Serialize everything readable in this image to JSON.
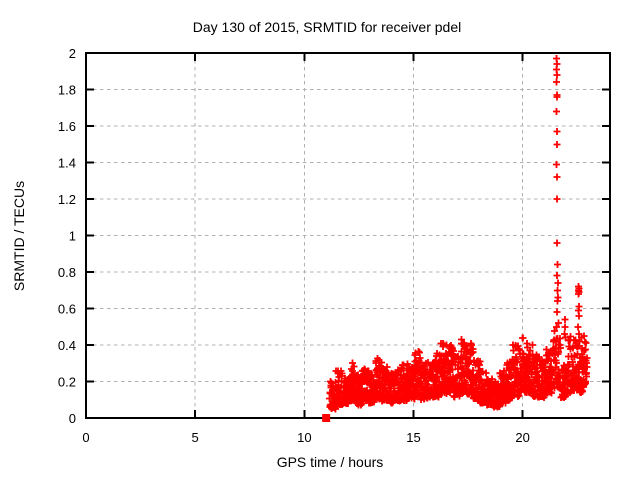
{
  "window": {
    "background": "#ffffff"
  },
  "chart_data": {
    "type": "scatter",
    "title": "Day 130 of 2015, SRMTID for receiver pdel",
    "xlabel": "GPS time / hours",
    "ylabel": "SRMTID / TECUs",
    "xlim": [
      0,
      24
    ],
    "ylim": [
      0,
      2
    ],
    "xticks": [
      [
        0,
        "0"
      ],
      [
        5,
        "5"
      ],
      [
        10,
        "10"
      ],
      [
        15,
        "15"
      ],
      [
        20,
        "20"
      ]
    ],
    "yticks": [
      [
        0,
        "0"
      ],
      [
        0.2,
        "0.2"
      ],
      [
        0.4,
        "0.4"
      ],
      [
        0.6,
        "0.6"
      ],
      [
        0.8,
        "0.8"
      ],
      [
        1,
        "1"
      ],
      [
        1.2,
        "1.2"
      ],
      [
        1.4,
        "1.4"
      ],
      [
        1.6,
        "1.6"
      ],
      [
        1.8,
        "1.8"
      ],
      [
        2,
        "2"
      ]
    ],
    "grid": {
      "visible": true,
      "style": "dashed",
      "color": "#b0b0b0"
    },
    "frame_color": "#000000",
    "marker": {
      "shape": "plus",
      "color": "#ff0000",
      "size": 7
    },
    "legend": "none",
    "series": {
      "name": "SRMTID",
      "zero_marker": {
        "x": 11.0,
        "y": 0,
        "shape": "filled-square",
        "size": 8
      },
      "band_segments": [
        [
          11.15,
          11.45,
          38,
          0.04,
          0.2
        ],
        [
          11.45,
          11.75,
          42,
          0.06,
          0.26
        ],
        [
          11.75,
          12.05,
          42,
          0.07,
          0.24
        ],
        [
          12.05,
          12.35,
          46,
          0.08,
          0.31
        ],
        [
          12.35,
          12.65,
          42,
          0.06,
          0.24
        ],
        [
          12.65,
          12.95,
          42,
          0.08,
          0.28
        ],
        [
          12.95,
          13.25,
          42,
          0.07,
          0.25
        ],
        [
          13.25,
          13.55,
          46,
          0.09,
          0.33
        ],
        [
          13.55,
          13.85,
          42,
          0.08,
          0.28
        ],
        [
          13.85,
          14.15,
          42,
          0.07,
          0.25
        ],
        [
          14.15,
          14.45,
          42,
          0.08,
          0.27
        ],
        [
          14.45,
          14.75,
          42,
          0.08,
          0.3
        ],
        [
          14.75,
          15.05,
          44,
          0.09,
          0.33
        ],
        [
          15.05,
          15.35,
          46,
          0.1,
          0.38
        ],
        [
          15.35,
          15.65,
          42,
          0.09,
          0.3
        ],
        [
          15.65,
          15.95,
          42,
          0.1,
          0.33
        ],
        [
          15.95,
          16.25,
          44,
          0.1,
          0.36
        ],
        [
          16.25,
          16.55,
          46,
          0.11,
          0.41
        ],
        [
          16.55,
          16.85,
          46,
          0.12,
          0.42
        ],
        [
          16.85,
          17.15,
          42,
          0.1,
          0.35
        ],
        [
          17.15,
          17.45,
          46,
          0.12,
          0.44
        ],
        [
          17.45,
          17.75,
          46,
          0.11,
          0.42
        ],
        [
          17.75,
          18.05,
          42,
          0.09,
          0.32
        ],
        [
          18.05,
          18.35,
          42,
          0.07,
          0.26
        ],
        [
          18.35,
          18.65,
          42,
          0.06,
          0.22
        ],
        [
          18.65,
          18.95,
          42,
          0.05,
          0.2
        ],
        [
          18.95,
          19.25,
          42,
          0.07,
          0.27
        ],
        [
          19.25,
          19.55,
          42,
          0.08,
          0.32
        ],
        [
          19.55,
          19.85,
          46,
          0.1,
          0.4
        ],
        [
          19.85,
          20.15,
          48,
          0.12,
          0.46
        ],
        [
          20.15,
          20.45,
          46,
          0.12,
          0.42
        ],
        [
          20.45,
          20.75,
          42,
          0.1,
          0.35
        ],
        [
          20.75,
          21.05,
          42,
          0.1,
          0.32
        ],
        [
          21.05,
          21.35,
          42,
          0.12,
          0.38
        ],
        [
          21.35,
          21.75,
          52,
          0.14,
          0.48
        ],
        [
          21.75,
          22.05,
          42,
          0.1,
          0.3
        ],
        [
          22.05,
          22.45,
          48,
          0.12,
          0.45
        ],
        [
          22.45,
          22.75,
          42,
          0.12,
          0.42
        ],
        [
          22.75,
          22.95,
          28,
          0.15,
          0.45
        ]
      ],
      "spike_points": [
        [
          21.56,
          1.97
        ],
        [
          21.57,
          1.94
        ],
        [
          21.56,
          1.91
        ],
        [
          21.58,
          1.88
        ],
        [
          21.56,
          1.84
        ],
        [
          21.57,
          1.77
        ],
        [
          21.58,
          1.76
        ],
        [
          21.56,
          1.68
        ],
        [
          21.57,
          1.57
        ],
        [
          21.58,
          1.5
        ],
        [
          21.56,
          1.39
        ],
        [
          21.57,
          1.32
        ],
        [
          21.58,
          1.2
        ],
        [
          21.57,
          0.96
        ],
        [
          21.6,
          0.84
        ],
        [
          21.58,
          0.78
        ],
        [
          21.61,
          0.74
        ],
        [
          21.59,
          0.7
        ],
        [
          21.62,
          0.66
        ],
        [
          21.6,
          0.64
        ],
        [
          21.57,
          0.58
        ],
        [
          21.63,
          0.52
        ],
        [
          21.55,
          0.5
        ],
        [
          21.93,
          0.54
        ],
        [
          21.95,
          0.5
        ],
        [
          21.92,
          0.46
        ],
        [
          21.96,
          0.44
        ],
        [
          22.55,
          0.72
        ],
        [
          22.57,
          0.71
        ],
        [
          22.56,
          0.7
        ],
        [
          22.58,
          0.69
        ],
        [
          22.55,
          0.68
        ],
        [
          22.57,
          0.61
        ],
        [
          22.56,
          0.59
        ],
        [
          22.58,
          0.56
        ],
        [
          22.54,
          0.5
        ],
        [
          22.57,
          0.46
        ],
        [
          22.6,
          0.42
        ],
        [
          22.7,
          0.44
        ],
        [
          22.72,
          0.38
        ]
      ]
    }
  }
}
